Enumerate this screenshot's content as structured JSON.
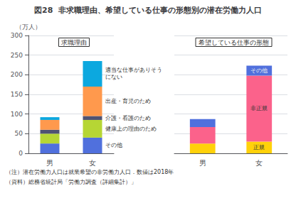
{
  "chart_data": [
    {
      "type": "bar",
      "title": "図28  非求職理由、希望している仕事の形態別の潜在労働力人口",
      "subtitle": "求職理由",
      "ylabel": "（万人）",
      "categories": [
        "男",
        "女"
      ],
      "series": [
        {
          "name": "その他",
          "values": [
            25,
            40
          ]
        },
        {
          "name": "健康上の理由のため",
          "values": [
            25,
            45
          ]
        },
        {
          "name": "介護・看護のため",
          "values": [
            10,
            10
          ]
        },
        {
          "name": "出産・育児のため",
          "values": [
            25,
            75
          ]
        },
        {
          "name": "適当な仕事がありそうにない",
          "values": [
            7,
            65
          ]
        }
      ],
      "stacked": true,
      "ylim": [
        0,
        300
      ],
      "yticks": [
        0,
        50,
        100,
        150,
        200,
        250,
        300
      ],
      "grid": true,
      "annotations": [
        "（注）潜在労働力人口は就業希望の非労働力人口．数値は2018年",
        "（資料）総務省統計局「労働力調査（詳細集計）」"
      ]
    },
    {
      "type": "bar",
      "subtitle": "希望している仕事の形態",
      "categories": [
        "男",
        "女"
      ],
      "series": [
        {
          "name": "正規",
          "values": [
            25,
            30
          ]
        },
        {
          "name": "非正規",
          "values": [
            42,
            168
          ]
        },
        {
          "name": "その他",
          "values": [
            20,
            25
          ]
        }
      ],
      "stacked": true,
      "ylim": [
        0,
        300
      ],
      "yticks": [
        0,
        50,
        100,
        150,
        200,
        250,
        300
      ],
      "grid": true,
      "tick_labels": "x"
    }
  ]
}
